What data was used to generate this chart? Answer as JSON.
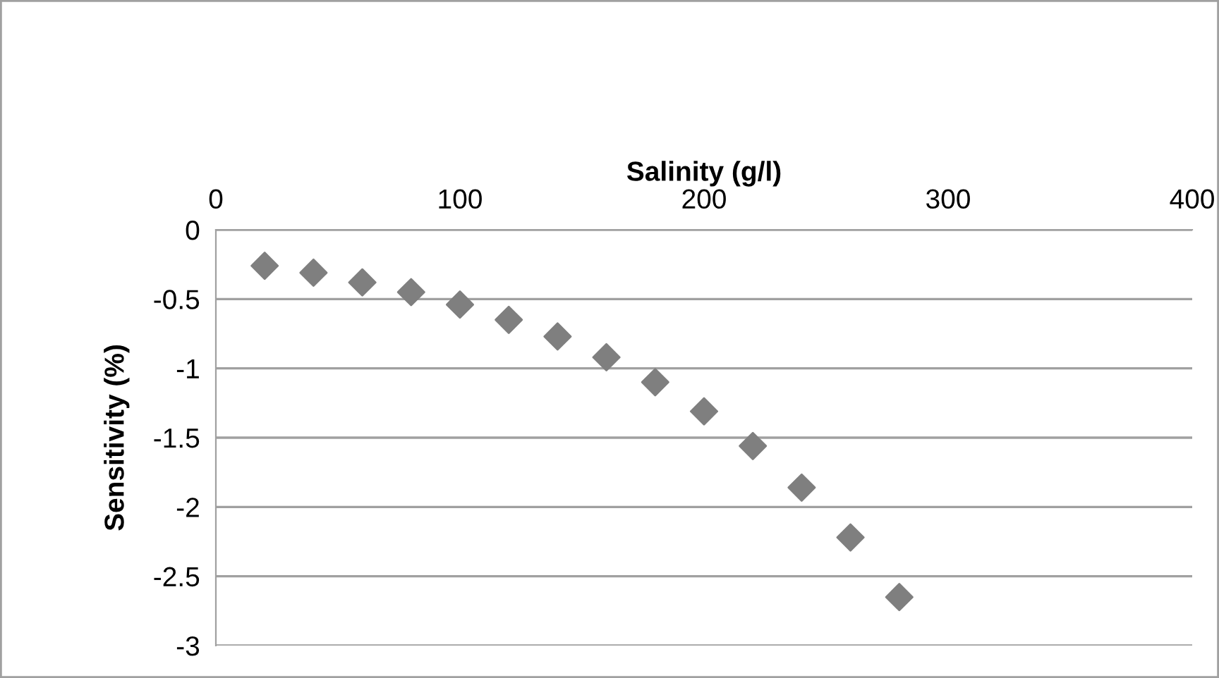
{
  "chart_data": {
    "type": "scatter",
    "xlabel": "Salinity (g/l)",
    "ylabel": "Sensitivity (%)",
    "x": [
      20,
      40,
      60,
      80,
      100,
      120,
      140,
      160,
      180,
      200,
      220,
      240,
      260,
      280
    ],
    "series": [
      {
        "color": "#7f7f7f",
        "values": [
          -0.26,
          -0.31,
          -0.38,
          -0.45,
          -0.54,
          -0.65,
          -0.77,
          -0.92,
          -1.1,
          -1.31,
          -1.56,
          -1.86,
          -2.22,
          -2.65
        ]
      }
    ],
    "xlim": [
      0,
      400
    ],
    "xticks": [
      0,
      100,
      200,
      300,
      400
    ],
    "ylim": [
      -3,
      0
    ],
    "yticks": [
      -3,
      -2.5,
      -2,
      -1.5,
      -1,
      -0.5,
      0
    ],
    "grid": "y",
    "marker": "diamond",
    "legend": false
  }
}
